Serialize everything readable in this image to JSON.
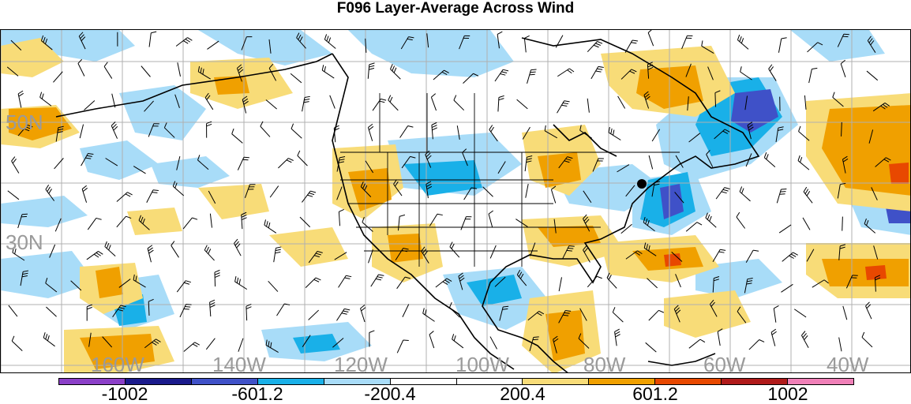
{
  "title": "F096 Layer-Average Across Wind",
  "map": {
    "lat_labels": [
      "50N",
      "30N"
    ],
    "lon_labels": [
      "160W",
      "140W",
      "120W",
      "100W",
      "80W",
      "60W",
      "40W"
    ]
  },
  "colorbar": {
    "colors": [
      "#8b3fc8",
      "#1a1a8c",
      "#3f51c8",
      "#19b0e8",
      "#a8dcf8",
      "#ffffff",
      "#ffffff",
      "#f8dc78",
      "#f0a000",
      "#e84800",
      "#b01a1a",
      "#f080b8"
    ],
    "labels": [
      "-1002",
      "-601.2",
      "-200.4",
      "200.4",
      "601.2",
      "1002"
    ]
  },
  "colors": {
    "light_blue": "#a8dcf8",
    "blue": "#19b0e8",
    "dark_blue": "#3f51c8",
    "light_orange": "#f8dc78",
    "orange": "#f0a000",
    "red_orange": "#e84800",
    "grid": "#b0b0b0",
    "label_gray": "#9a9a9a"
  }
}
